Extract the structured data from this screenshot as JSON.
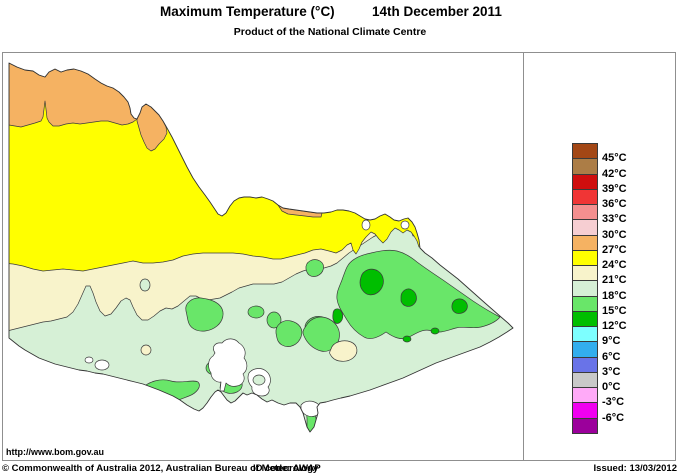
{
  "header": {
    "title": "Maximum Temperature (°C)",
    "date": "14th December 2011",
    "subtitle": "Product of the National Climate Centre"
  },
  "legend": {
    "labels": [
      "45°C",
      "42°C",
      "39°C",
      "36°C",
      "33°C",
      "30°C",
      "27°C",
      "24°C",
      "21°C",
      "18°C",
      "15°C",
      "12°C",
      "9°C",
      "6°C",
      "3°C",
      "0°C",
      "-3°C",
      "-6°C"
    ],
    "colors": [
      "#A34715",
      "#AC7D46",
      "#CF0E0E",
      "#F03535",
      "#F48F8F",
      "#F6CED2",
      "#F5B262",
      "#FFFF00",
      "#F8F3CB",
      "#D6F0D6",
      "#69E669",
      "#00BE00",
      "#7DFFFF",
      "#33AEEE",
      "#6973E8",
      "#C9C9C9",
      "#FFAAF8",
      "#F000F0",
      "#9B009B"
    ]
  },
  "map": {
    "region_name": "Victoria",
    "palette": {
      "band_27_30": "#F5B262",
      "band_24_27": "#FFFF00",
      "band_21_24": "#F8F3CB",
      "band_18_21": "#D6F0D6",
      "band_15_18": "#69E669",
      "band_12_15": "#00BE00",
      "water": "#FFFFFF"
    }
  },
  "footer": {
    "url": "http://www.bom.gov.au",
    "copyright": "© Commonwealth of Australia 2012, Australian Bureau of Meteorology",
    "id_code": "ID code: AWAP",
    "issued": "Issued: 13/03/2012"
  }
}
